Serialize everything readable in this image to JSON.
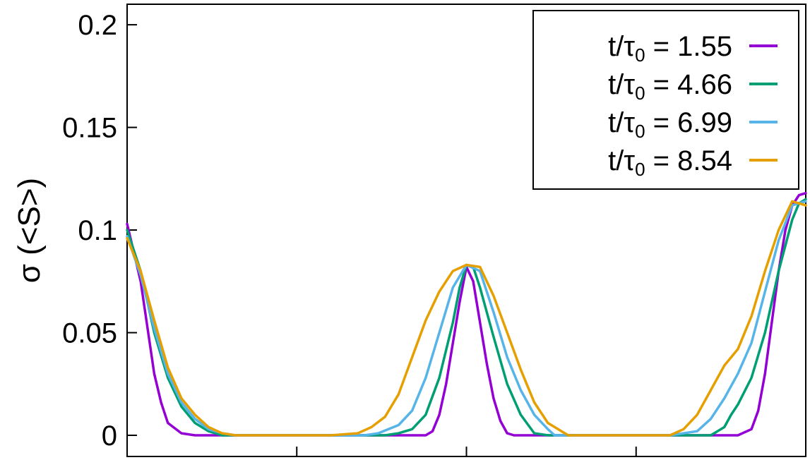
{
  "chart_data": {
    "type": "line",
    "title": "",
    "xlabel": "",
    "ylabel": "σ (<S>)",
    "xlim": [
      0,
      1
    ],
    "ylim": [
      0,
      0.21
    ],
    "grid": false,
    "legend_placement": "top-right",
    "y_ticks": [
      {
        "value": 0,
        "label": "0"
      },
      {
        "value": 0.05,
        "label": "0.05"
      },
      {
        "value": 0.1,
        "label": "0.1"
      },
      {
        "value": 0.15,
        "label": "0.15"
      },
      {
        "value": 0.2,
        "label": "0.2"
      }
    ],
    "x_ticks": [
      {
        "value": 0.25,
        "label": ""
      },
      {
        "value": 0.5,
        "label": ""
      },
      {
        "value": 0.75,
        "label": ""
      }
    ],
    "series": [
      {
        "name": "t/τ0 = 1.55",
        "legend_prefix": "t/τ",
        "legend_sub": "0",
        "legend_value": " = 1.55",
        "color": "#9400d3",
        "x": [
          0,
          0.02,
          0.04,
          0.05,
          0.06,
          0.08,
          0.1,
          0.12,
          0.15,
          0.2,
          0.3,
          0.4,
          0.44,
          0.45,
          0.46,
          0.47,
          0.48,
          0.49,
          0.5,
          0.51,
          0.52,
          0.53,
          0.54,
          0.55,
          0.56,
          0.57,
          0.6,
          0.7,
          0.8,
          0.9,
          0.92,
          0.93,
          0.94,
          0.95,
          0.96,
          0.97,
          0.98,
          0.99,
          1.0
        ],
        "y": [
          0.103,
          0.075,
          0.03,
          0.016,
          0.006,
          0.001,
          0.0,
          0.0,
          0.0,
          0.0,
          0.0,
          0.0,
          0.0,
          0.002,
          0.01,
          0.025,
          0.045,
          0.065,
          0.082,
          0.075,
          0.055,
          0.035,
          0.018,
          0.007,
          0.001,
          0.0,
          0.0,
          0.0,
          0.0,
          0.0,
          0.003,
          0.012,
          0.03,
          0.055,
          0.08,
          0.1,
          0.112,
          0.117,
          0.118
        ]
      },
      {
        "name": "t/τ0 = 4.66",
        "legend_prefix": "t/τ",
        "legend_sub": "0",
        "legend_value": " = 4.66",
        "color": "#009e73",
        "x": [
          0,
          0.02,
          0.04,
          0.06,
          0.08,
          0.1,
          0.12,
          0.14,
          0.16,
          0.2,
          0.3,
          0.38,
          0.4,
          0.42,
          0.44,
          0.46,
          0.48,
          0.49,
          0.5,
          0.51,
          0.52,
          0.54,
          0.56,
          0.58,
          0.6,
          0.62,
          0.7,
          0.8,
          0.86,
          0.88,
          0.89,
          0.9,
          0.92,
          0.94,
          0.96,
          0.98,
          0.99,
          1.0
        ],
        "y": [
          0.1,
          0.08,
          0.05,
          0.028,
          0.014,
          0.006,
          0.002,
          0.0,
          0.0,
          0.0,
          0.0,
          0.0,
          0.001,
          0.003,
          0.01,
          0.028,
          0.055,
          0.072,
          0.083,
          0.082,
          0.072,
          0.048,
          0.025,
          0.01,
          0.001,
          0.0,
          0.0,
          0.0,
          0.0,
          0.004,
          0.01,
          0.015,
          0.028,
          0.05,
          0.08,
          0.105,
          0.113,
          0.115
        ]
      },
      {
        "name": "t/τ0 = 6.99",
        "legend_prefix": "t/τ",
        "legend_sub": "0",
        "legend_value": " = 6.99",
        "color": "#56b4e9",
        "x": [
          0,
          0.02,
          0.04,
          0.06,
          0.08,
          0.1,
          0.12,
          0.14,
          0.16,
          0.2,
          0.3,
          0.35,
          0.37,
          0.4,
          0.42,
          0.44,
          0.46,
          0.48,
          0.5,
          0.52,
          0.54,
          0.56,
          0.58,
          0.6,
          0.62,
          0.63,
          0.7,
          0.8,
          0.84,
          0.86,
          0.88,
          0.9,
          0.92,
          0.94,
          0.96,
          0.98,
          1.0
        ],
        "y": [
          0.097,
          0.078,
          0.052,
          0.03,
          0.016,
          0.008,
          0.003,
          0.001,
          0.0,
          0.0,
          0.0,
          0.0,
          0.001,
          0.005,
          0.012,
          0.028,
          0.05,
          0.072,
          0.083,
          0.08,
          0.06,
          0.038,
          0.022,
          0.01,
          0.003,
          0.0,
          0.0,
          0.0,
          0.002,
          0.008,
          0.018,
          0.03,
          0.045,
          0.07,
          0.095,
          0.112,
          0.114
        ]
      },
      {
        "name": "t/τ0 = 8.54",
        "legend_prefix": "t/τ",
        "legend_sub": "0",
        "legend_value": " = 8.54",
        "color": "#e69f00",
        "x": [
          0,
          0.02,
          0.04,
          0.06,
          0.08,
          0.1,
          0.12,
          0.14,
          0.16,
          0.2,
          0.3,
          0.34,
          0.36,
          0.38,
          0.4,
          0.42,
          0.44,
          0.46,
          0.48,
          0.5,
          0.52,
          0.54,
          0.56,
          0.58,
          0.6,
          0.62,
          0.65,
          0.7,
          0.8,
          0.82,
          0.84,
          0.86,
          0.88,
          0.9,
          0.92,
          0.94,
          0.96,
          0.98,
          1.0
        ],
        "y": [
          0.096,
          0.08,
          0.056,
          0.033,
          0.018,
          0.01,
          0.004,
          0.001,
          0.0,
          0.0,
          0.0,
          0.001,
          0.004,
          0.009,
          0.02,
          0.038,
          0.056,
          0.07,
          0.08,
          0.083,
          0.082,
          0.068,
          0.05,
          0.032,
          0.016,
          0.006,
          0.0,
          0.0,
          0.0,
          0.003,
          0.01,
          0.022,
          0.034,
          0.042,
          0.058,
          0.08,
          0.1,
          0.114,
          0.112
        ]
      }
    ]
  }
}
